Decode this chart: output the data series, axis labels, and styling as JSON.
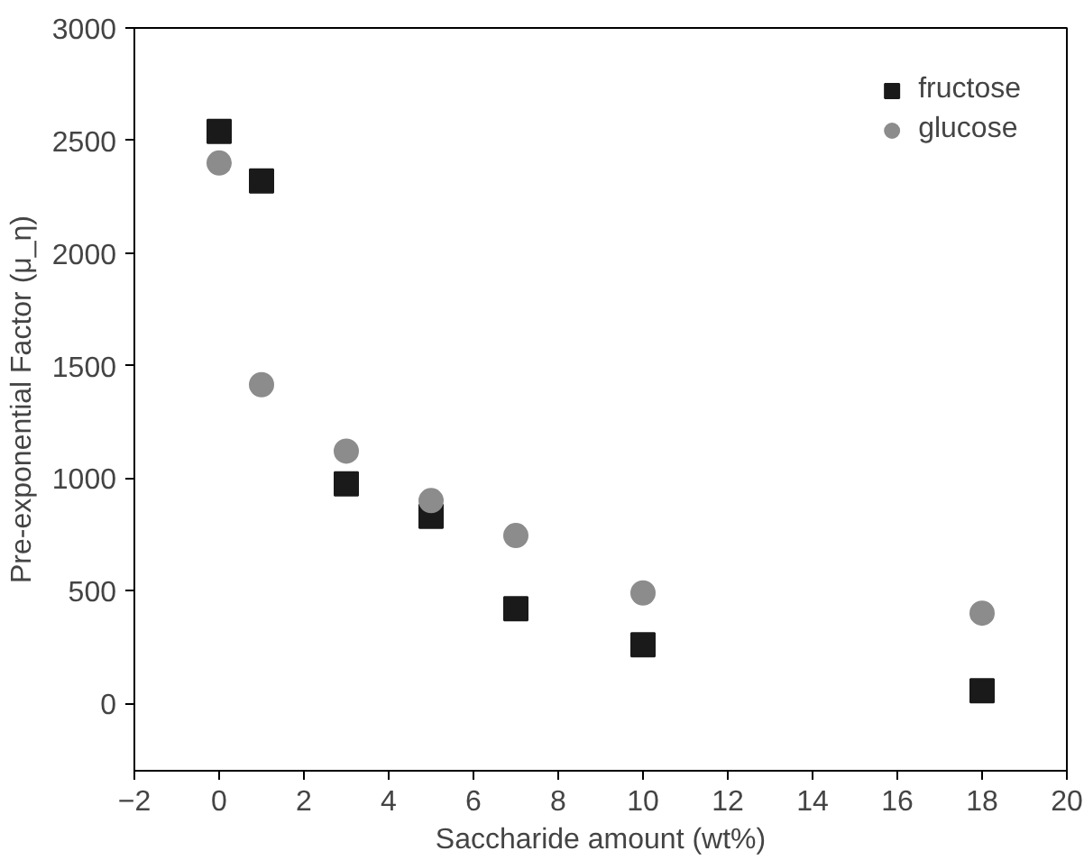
{
  "chart_data": {
    "type": "scatter",
    "xlabel": "Saccharide amount (wt%)",
    "ylabel": "Pre-exponential Factor (μ_η)",
    "xlim": [
      -2,
      20
    ],
    "ylim": [
      -300,
      3000
    ],
    "xticks": [
      -2,
      0,
      2,
      4,
      6,
      8,
      10,
      12,
      14,
      16,
      18,
      20
    ],
    "yticks": [
      0,
      500,
      1000,
      1500,
      2000,
      2500,
      3000
    ],
    "x": [
      0,
      1,
      3,
      5,
      7,
      10,
      18
    ],
    "series": [
      {
        "name": "fructose",
        "color": "#1a1a1a",
        "marker": "square",
        "values": [
          2540,
          2320,
          975,
          830,
          420,
          260,
          55
        ]
      },
      {
        "name": "glucose",
        "color": "#8c8c8c",
        "marker": "circle",
        "values": [
          2400,
          1415,
          1120,
          900,
          745,
          490,
          400
        ]
      }
    ],
    "grid": false,
    "legend": "top right"
  }
}
